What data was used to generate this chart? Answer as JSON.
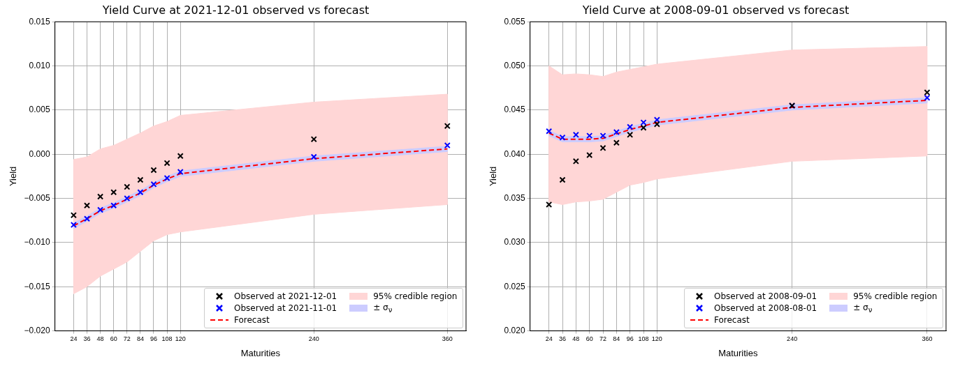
{
  "chart_data": [
    {
      "type": "scatter",
      "title": "Yield Curve at 2021-12-01 observed vs forecast",
      "xlabel": "Maturities",
      "ylabel": "Yield",
      "x": [
        24,
        36,
        48,
        60,
        72,
        84,
        96,
        108,
        120,
        240,
        360
      ],
      "series": [
        {
          "name": "Observed at 2021-12-01",
          "color": "#000000",
          "marker": "cross",
          "values": [
            -0.0069,
            -0.0058,
            -0.0048,
            -0.0043,
            -0.0037,
            -0.0029,
            -0.0018,
            -0.001,
            -0.0002,
            0.0017,
            0.0032
          ]
        },
        {
          "name": "Observed at 2021-11-01",
          "color": "#0000ff",
          "marker": "cross",
          "values": [
            -0.008,
            -0.0073,
            -0.0063,
            -0.0058,
            -0.005,
            -0.0043,
            -0.0034,
            -0.0027,
            -0.002,
            -0.0003,
            0.001
          ]
        },
        {
          "name": "Forecast",
          "type": "line",
          "color": "#ff0000",
          "line_style": "dashed",
          "marker": "none",
          "values": [
            -0.0081,
            -0.0073,
            -0.0064,
            -0.0058,
            -0.0051,
            -0.0044,
            -0.0035,
            -0.0028,
            -0.0022,
            -0.0005,
            0.0006
          ]
        },
        {
          "name": "95% credible region",
          "type": "line",
          "color": "#ffd6d6",
          "marker": "none",
          "values": [
            -0.0081,
            -0.0073,
            -0.0064,
            -0.0058,
            -0.0051,
            -0.0044,
            -0.0035,
            -0.0028,
            -0.0022,
            -0.0005,
            0.0006
          ],
          "lower": [
            -0.0158,
            -0.015,
            -0.0138,
            -0.013,
            -0.0122,
            -0.011,
            -0.0098,
            -0.0091,
            -0.0088,
            -0.0068,
            -0.0057
          ],
          "upper": [
            -0.0006,
            -0.0003,
            0.0006,
            0.001,
            0.0017,
            0.0024,
            0.0032,
            0.0037,
            0.0044,
            0.0059,
            0.0068
          ]
        },
        {
          "name": "± σ$_{ν}$",
          "type": "line",
          "color": "#ccccff",
          "marker": "none",
          "values": [
            -0.0081,
            -0.0073,
            -0.0064,
            -0.0058,
            -0.0051,
            -0.0044,
            -0.0035,
            -0.0028,
            -0.0022,
            -0.0005,
            0.0006
          ],
          "lower": [
            -0.0084,
            -0.0076,
            -0.0067,
            -0.0061,
            -0.0054,
            -0.0047,
            -0.0038,
            -0.0031,
            -0.0025,
            -0.0008,
            0.0003
          ],
          "upper": [
            -0.0078,
            -0.007,
            -0.0061,
            -0.0055,
            -0.0048,
            -0.0041,
            -0.0032,
            -0.0025,
            -0.0019,
            -0.0002,
            0.0009
          ]
        }
      ],
      "xlim": [
        7.2,
        376.8
      ],
      "xticks": [
        24,
        36,
        48,
        60,
        72,
        84,
        96,
        108,
        120,
        240,
        360
      ],
      "ylim": [
        -0.02,
        0.015
      ],
      "yticks": [
        {
          "value": -0.02,
          "label": "−0.020"
        },
        {
          "value": -0.015,
          "label": "−0.015"
        },
        {
          "value": -0.01,
          "label": "−0.010"
        },
        {
          "value": -0.005,
          "label": "−0.005"
        },
        {
          "value": 0,
          "label": "0.000"
        },
        {
          "value": 0.005,
          "label": "0.005"
        },
        {
          "value": 0.01,
          "label": "0.010"
        },
        {
          "value": 0.015,
          "label": "0.015"
        }
      ],
      "grid": true,
      "legend": "bottom right"
    },
    {
      "type": "scatter",
      "title": "Yield Curve at 2008-09-01 observed vs forecast",
      "xlabel": "Maturities",
      "ylabel": "Yield",
      "x": [
        24,
        36,
        48,
        60,
        72,
        84,
        96,
        108,
        120,
        240,
        360
      ],
      "series": [
        {
          "name": "Observed at 2008-09-01",
          "color": "#000000",
          "marker": "cross",
          "values": [
            0.0343,
            0.0371,
            0.0392,
            0.0399,
            0.0407,
            0.0413,
            0.0422,
            0.043,
            0.0434,
            0.0455,
            0.047
          ]
        },
        {
          "name": "Observed at 2008-08-01",
          "color": "#0000ff",
          "marker": "cross",
          "values": [
            0.0426,
            0.0419,
            0.0422,
            0.0421,
            0.0421,
            0.0425,
            0.0431,
            0.0436,
            0.0439,
            0.0455,
            0.0464
          ]
        },
        {
          "name": "Forecast",
          "type": "line",
          "color": "#ff0000",
          "line_style": "dashed",
          "marker": "none",
          "values": [
            0.0424,
            0.0417,
            0.0417,
            0.0417,
            0.0418,
            0.0423,
            0.0428,
            0.0432,
            0.0436,
            0.0453,
            0.0461
          ]
        },
        {
          "name": "95% credible region",
          "type": "line",
          "color": "#ffd6d6",
          "marker": "none",
          "values": [
            0.0424,
            0.0417,
            0.0417,
            0.0417,
            0.0418,
            0.0423,
            0.0428,
            0.0432,
            0.0436,
            0.0453,
            0.0461
          ],
          "lower": [
            0.0346,
            0.0343,
            0.0346,
            0.0347,
            0.0349,
            0.0357,
            0.0365,
            0.0368,
            0.0372,
            0.0392,
            0.0398
          ],
          "upper": [
            0.05,
            0.049,
            0.0491,
            0.049,
            0.0488,
            0.0493,
            0.0496,
            0.0499,
            0.0502,
            0.0518,
            0.0522
          ]
        },
        {
          "name": "± σ$_{ν}$",
          "type": "line",
          "color": "#ccccff",
          "marker": "none",
          "values": [
            0.0424,
            0.0417,
            0.0417,
            0.0417,
            0.0418,
            0.0423,
            0.0428,
            0.0432,
            0.0436,
            0.0453,
            0.0461
          ],
          "lower": [
            0.0421,
            0.0414,
            0.0414,
            0.0414,
            0.0415,
            0.042,
            0.0425,
            0.0429,
            0.0433,
            0.045,
            0.0458
          ],
          "upper": [
            0.0427,
            0.042,
            0.042,
            0.042,
            0.0421,
            0.0426,
            0.0431,
            0.0435,
            0.0439,
            0.0456,
            0.0464
          ]
        }
      ],
      "xlim": [
        7.2,
        376.8
      ],
      "xticks": [
        24,
        36,
        48,
        60,
        72,
        84,
        96,
        108,
        120,
        240,
        360
      ],
      "ylim": [
        0.02,
        0.055
      ],
      "yticks": [
        {
          "value": 0.02,
          "label": "0.020"
        },
        {
          "value": 0.025,
          "label": "0.025"
        },
        {
          "value": 0.03,
          "label": "0.030"
        },
        {
          "value": 0.035,
          "label": "0.035"
        },
        {
          "value": 0.04,
          "label": "0.040"
        },
        {
          "value": 0.045,
          "label": "0.045"
        },
        {
          "value": 0.05,
          "label": "0.050"
        },
        {
          "value": 0.055,
          "label": "0.055"
        }
      ],
      "grid": true,
      "legend": "bottom right"
    }
  ]
}
